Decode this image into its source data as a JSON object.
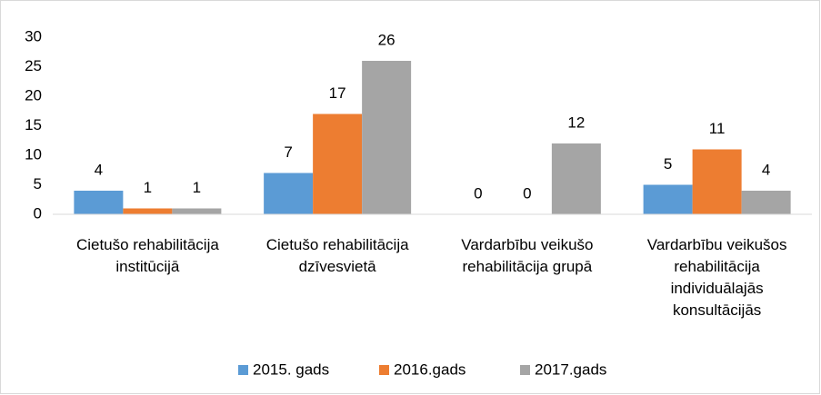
{
  "chart_data": {
    "type": "bar",
    "categories": [
      "Cietušo rehabilitācija institūcijā",
      "Cietušo rehabilitācija dzīvesvietā",
      "Vardarbību veikušo rehabilitācija grupā",
      "Vardarbību veikušos rehabilitācija individuālajās konsultācijās"
    ],
    "series": [
      {
        "name": "2015. gads",
        "color": "#5b9bd5",
        "values": [
          4,
          7,
          0,
          5
        ]
      },
      {
        "name": "2016.gads",
        "color": "#ed7d31",
        "values": [
          1,
          17,
          0,
          11
        ]
      },
      {
        "name": "2017.gads",
        "color": "#a5a5a5",
        "values": [
          1,
          26,
          12,
          4
        ]
      }
    ],
    "ylim": [
      0,
      30
    ],
    "yticks": [
      0,
      5,
      10,
      15,
      20,
      25,
      30
    ],
    "grid": false,
    "legend": "bottom"
  }
}
